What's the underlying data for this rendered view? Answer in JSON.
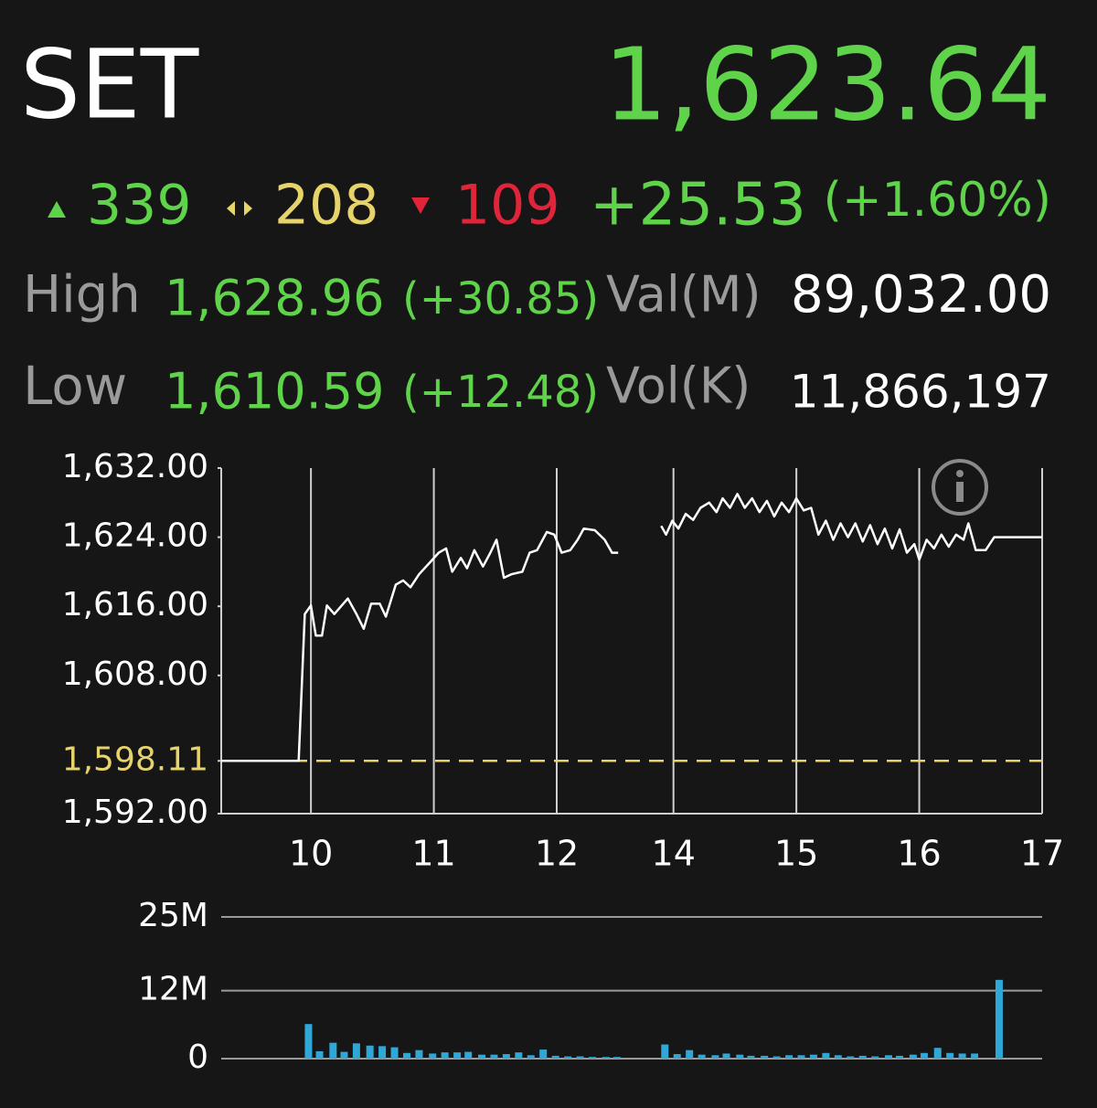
{
  "header": {
    "title": "SET",
    "last": "1,623.64",
    "advances": "339",
    "unchanged": "208",
    "declines": "109",
    "change": "+25.53",
    "change_pct": "(+1.60%)",
    "high_label": "High",
    "high": "1,628.96",
    "high_change": "(+30.85)",
    "value_label": "Val(M)",
    "value": "89,032.00",
    "low_label": "Low",
    "low": "1,610.59",
    "low_change": "(+12.48)",
    "volume_label": "Vol(K)",
    "volume": "11,866,197"
  },
  "chart_data": [
    {
      "type": "line",
      "color": "#ffffff",
      "reference": 1598.11,
      "reference_color": "#e6d36a",
      "x": [
        9.27,
        9.9,
        9.95,
        10.0,
        10.04,
        10.09,
        10.13,
        10.19,
        10.3,
        10.37,
        10.43,
        10.49,
        10.56,
        10.61,
        10.69,
        10.75,
        10.81,
        10.88,
        10.97,
        11.04,
        11.1,
        11.15,
        11.22,
        11.27,
        11.33,
        11.4,
        11.46,
        11.51,
        11.57,
        11.63,
        11.72,
        11.78,
        11.84,
        11.92,
        11.98,
        12.04,
        12.11,
        12.17,
        12.22,
        12.31,
        12.39,
        12.45,
        12.5,
        null,
        13.9,
        13.94,
        13.99,
        14.04,
        14.1,
        14.16,
        14.22,
        14.29,
        14.35,
        14.4,
        14.46,
        14.52,
        14.58,
        14.64,
        14.7,
        14.76,
        14.82,
        14.88,
        14.94,
        15.0,
        15.06,
        15.12,
        15.18,
        15.24,
        15.3,
        15.36,
        15.42,
        15.48,
        15.54,
        15.6,
        15.66,
        15.72,
        15.78,
        15.84,
        15.9,
        15.96,
        16.0,
        16.06,
        16.12,
        16.18,
        16.24,
        16.3,
        16.36,
        16.4,
        16.46,
        16.54,
        16.61,
        17.0
      ],
      "values": [
        1598.11,
        1598.11,
        1615.1,
        1616.1,
        1612.6,
        1612.6,
        1616.1,
        1615.1,
        1616.9,
        1615.1,
        1613.4,
        1616.3,
        1616.3,
        1614.8,
        1618.5,
        1619.0,
        1618.2,
        1619.7,
        1621.1,
        1622.2,
        1622.7,
        1620.0,
        1621.6,
        1620.4,
        1622.5,
        1620.6,
        1622.2,
        1623.7,
        1619.3,
        1619.7,
        1620.0,
        1622.2,
        1622.5,
        1624.6,
        1624.3,
        1622.2,
        1622.5,
        1623.7,
        1625.0,
        1624.8,
        1623.7,
        1622.2,
        1622.2,
        null,
        1625.3,
        1624.3,
        1625.9,
        1625.0,
        1626.7,
        1626.0,
        1627.4,
        1628.0,
        1626.9,
        1628.5,
        1627.4,
        1629.0,
        1627.4,
        1628.5,
        1626.9,
        1628.2,
        1626.4,
        1628.0,
        1626.9,
        1628.5,
        1627.1,
        1627.4,
        1624.3,
        1625.9,
        1623.7,
        1625.6,
        1624.0,
        1625.6,
        1623.5,
        1625.4,
        1623.2,
        1625.0,
        1622.7,
        1624.9,
        1622.2,
        1623.2,
        1621.4,
        1623.7,
        1622.7,
        1624.3,
        1622.9,
        1624.3,
        1623.7,
        1625.6,
        1622.5,
        1622.5,
        1624.0,
        1624.0
      ],
      "xlim": [
        9.27,
        17
      ],
      "xbreak": [
        12.5,
        13.55
      ],
      "xticks": [
        10,
        11,
        12,
        14,
        15,
        16,
        17
      ],
      "ylim": [
        1592,
        1632
      ],
      "yticks": [
        {
          "value": 1592,
          "label": "1,592.00"
        },
        {
          "value": 1598.11,
          "label": "1,598.11"
        },
        {
          "value": 1608,
          "label": "1,608.00"
        },
        {
          "value": 1616,
          "label": "1,616.00"
        },
        {
          "value": 1624,
          "label": "1,624.00"
        },
        {
          "value": 1632,
          "label": "1,632.00"
        }
      ]
    },
    {
      "type": "bar",
      "color": "#2fa8d8",
      "x": [
        9.98,
        10.07,
        10.18,
        10.27,
        10.37,
        10.48,
        10.58,
        10.68,
        10.78,
        10.88,
        10.99,
        11.09,
        11.19,
        11.28,
        11.39,
        11.49,
        11.59,
        11.69,
        11.79,
        11.89,
        11.99,
        12.09,
        12.19,
        12.29,
        12.4,
        12.49,
        13.93,
        14.03,
        14.13,
        14.23,
        14.34,
        14.43,
        14.54,
        14.63,
        14.74,
        14.84,
        14.94,
        15.04,
        15.14,
        15.24,
        15.34,
        15.44,
        15.54,
        15.64,
        15.75,
        15.84,
        15.95,
        16.04,
        16.15,
        16.25,
        16.35,
        16.45,
        16.65
      ],
      "values": [
        6.1,
        1.3,
        2.8,
        1.2,
        2.7,
        2.3,
        2.2,
        2.0,
        1.0,
        1.5,
        0.9,
        1.1,
        1.1,
        1.2,
        0.7,
        0.7,
        0.8,
        1.1,
        0.6,
        1.6,
        0.5,
        0.4,
        0.4,
        0.3,
        0.3,
        0.3,
        2.5,
        0.8,
        1.5,
        0.7,
        0.6,
        0.9,
        0.7,
        0.5,
        0.5,
        0.4,
        0.6,
        0.6,
        0.7,
        1.0,
        0.6,
        0.4,
        0.5,
        0.4,
        0.6,
        0.5,
        0.7,
        1.0,
        1.9,
        1.0,
        0.9,
        0.9,
        13.9
      ],
      "xlim": [
        9.27,
        17
      ],
      "xbreak": [
        12.5,
        13.55
      ],
      "ylim": [
        0,
        25
      ],
      "yticks": [
        0,
        {
          "value": 12,
          "label": "12M"
        },
        {
          "value": 25,
          "label": "25M"
        }
      ]
    }
  ]
}
